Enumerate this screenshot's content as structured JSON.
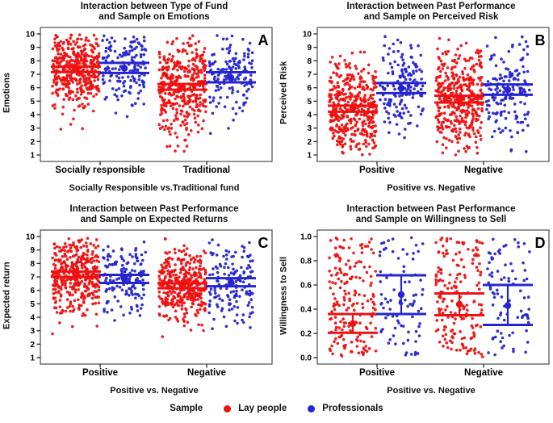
{
  "figure": {
    "background": "#ffffff",
    "colors": {
      "lay": "#EE1111",
      "prof": "#2525D0",
      "axis": "#4d4d4d",
      "text": "#000000"
    }
  },
  "legend": {
    "title": "Sample",
    "entries": [
      {
        "sample": "lay",
        "label": "Lay people"
      },
      {
        "sample": "prof",
        "label": "Professionals"
      }
    ]
  },
  "chart_data": [
    {
      "panel_label": "A",
      "type": "scatter",
      "title_lines": [
        "Interaction between Type of Fund",
        "and Sample on Emotions"
      ],
      "ylabel": "Emotions",
      "xlabel": "Socially Responsible vs.Traditional fund",
      "ylim": [
        1,
        10
      ],
      "yticks": {
        "values": [
          1,
          2,
          3,
          4,
          5,
          6,
          7,
          8,
          9,
          10
        ],
        "labels": [
          "1",
          "2",
          "3",
          "4",
          "5",
          "6",
          "7",
          "8",
          "9",
          "10"
        ]
      },
      "categories": [
        "Socially responsible",
        "Traditional"
      ],
      "series": [
        {
          "sample": "lay",
          "name": "Lay people",
          "category": "Socially responsible",
          "dist": "normal",
          "mean": 7.37,
          "ci_low": 7.16,
          "ci_high": 7.57,
          "sd": 1.45,
          "clip": [
            1.9,
            9.95
          ],
          "n": 380
        },
        {
          "sample": "prof",
          "name": "Professionals",
          "category": "Socially responsible",
          "dist": "normal",
          "mean": 7.45,
          "ci_low": 7.1,
          "ci_high": 7.85,
          "sd": 1.5,
          "clip": [
            2.0,
            9.95
          ],
          "n": 150
        },
        {
          "sample": "lay",
          "name": "Lay people",
          "category": "Traditional",
          "dist": "normal",
          "mean": 6.05,
          "ci_low": 5.85,
          "ci_high": 6.28,
          "sd": 1.75,
          "clip": [
            1.0,
            9.9
          ],
          "n": 380
        },
        {
          "sample": "prof",
          "name": "Professionals",
          "category": "Traditional",
          "dist": "normal",
          "mean": 6.75,
          "ci_low": 6.4,
          "ci_high": 7.15,
          "sd": 1.65,
          "clip": [
            1.3,
            9.9
          ],
          "n": 150
        }
      ]
    },
    {
      "panel_label": "B",
      "type": "scatter",
      "title_lines": [
        "Interaction between Past Performance",
        "and Sample on Perceived Risk"
      ],
      "ylabel": "Perceived Risk",
      "xlabel": "Positive vs. Negative",
      "ylim": [
        1,
        10
      ],
      "yticks": {
        "values": [
          1,
          2,
          3,
          4,
          5,
          6,
          7,
          8,
          9,
          10
        ],
        "labels": [
          "1",
          "2",
          "3",
          "4",
          "5",
          "6",
          "7",
          "8",
          "9",
          "10"
        ]
      },
      "categories": [
        "Positive",
        "Negative"
      ],
      "series": [
        {
          "sample": "lay",
          "name": "Lay people",
          "category": "Positive",
          "dist": "normal",
          "mean": 4.45,
          "ci_low": 4.22,
          "ci_high": 4.67,
          "sd": 1.8,
          "clip": [
            1.0,
            9.9
          ],
          "n": 400
        },
        {
          "sample": "prof",
          "name": "Professionals",
          "category": "Positive",
          "dist": "normal",
          "mean": 5.95,
          "ci_low": 5.6,
          "ci_high": 6.35,
          "sd": 1.65,
          "clip": [
            1.2,
            10.0
          ],
          "n": 160
        },
        {
          "sample": "lay",
          "name": "Lay people",
          "category": "Negative",
          "dist": "normal",
          "mean": 5.15,
          "ci_low": 4.9,
          "ci_high": 5.4,
          "sd": 1.85,
          "clip": [
            1.0,
            9.9
          ],
          "n": 400
        },
        {
          "sample": "prof",
          "name": "Professionals",
          "category": "Negative",
          "dist": "normal",
          "mean": 5.85,
          "ci_low": 5.48,
          "ci_high": 6.24,
          "sd": 1.8,
          "clip": [
            1.1,
            10.0
          ],
          "n": 160
        }
      ]
    },
    {
      "panel_label": "C",
      "type": "scatter",
      "title_lines": [
        "Interaction between Past Performance",
        "and Sample on Expected Returns"
      ],
      "ylabel": "Expected return",
      "xlabel": "Positive vs. Negative",
      "ylim": [
        1,
        10
      ],
      "yticks": {
        "values": [
          1,
          2,
          3,
          4,
          5,
          6,
          7,
          8,
          9,
          10
        ],
        "labels": [
          "1",
          "2",
          "3",
          "4",
          "5",
          "6",
          "7",
          "8",
          "9",
          "10"
        ]
      },
      "categories": [
        "Positive",
        "Negative"
      ],
      "series": [
        {
          "sample": "lay",
          "name": "Lay people",
          "category": "Positive",
          "dist": "normal",
          "mean": 7.2,
          "ci_low": 7.0,
          "ci_high": 7.4,
          "sd": 1.4,
          "clip": [
            1.8,
            10.0
          ],
          "n": 380
        },
        {
          "sample": "prof",
          "name": "Professionals",
          "category": "Positive",
          "dist": "normal",
          "mean": 6.85,
          "ci_low": 6.55,
          "ci_high": 7.15,
          "sd": 1.35,
          "clip": [
            2.2,
            10.0
          ],
          "n": 150
        },
        {
          "sample": "lay",
          "name": "Lay people",
          "category": "Negative",
          "dist": "normal",
          "mean": 6.35,
          "ci_low": 6.15,
          "ci_high": 6.52,
          "sd": 1.6,
          "clip": [
            1.5,
            9.9
          ],
          "n": 380
        },
        {
          "sample": "prof",
          "name": "Professionals",
          "category": "Negative",
          "dist": "normal",
          "mean": 6.6,
          "ci_low": 6.3,
          "ci_high": 6.9,
          "sd": 1.6,
          "clip": [
            1.1,
            10.0
          ],
          "n": 150
        }
      ]
    },
    {
      "panel_label": "D",
      "type": "scatter",
      "title_lines": [
        "Interaction between Past Performance",
        "and Sample on Willingness to Sell"
      ],
      "ylabel": "Willingness to Sell",
      "xlabel": "Positive vs. Negative",
      "ylim": [
        0,
        1
      ],
      "yticks": {
        "values": [
          0,
          0.2,
          0.4,
          0.6,
          0.8,
          1
        ],
        "labels": [
          "0.0",
          "0.2",
          "0.4",
          "0.6",
          "0.8",
          "1.0"
        ]
      },
      "categories": [
        "Positive",
        "Negative"
      ],
      "series": [
        {
          "sample": "lay",
          "name": "Lay people",
          "category": "Positive",
          "dist": "uniform",
          "mean": 0.28,
          "ci_low": 0.205,
          "ci_high": 0.36,
          "clip": [
            0.005,
            0.995
          ],
          "n": 180
        },
        {
          "sample": "prof",
          "name": "Professionals",
          "category": "Positive",
          "dist": "uniform",
          "mean": 0.52,
          "ci_low": 0.36,
          "ci_high": 0.68,
          "clip": [
            0.005,
            0.995
          ],
          "n": 85
        },
        {
          "sample": "lay",
          "name": "Lay people",
          "category": "Negative",
          "dist": "uniform",
          "mean": 0.44,
          "ci_low": 0.35,
          "ci_high": 0.53,
          "clip": [
            0.005,
            0.995
          ],
          "n": 175
        },
        {
          "sample": "prof",
          "name": "Professionals",
          "category": "Negative",
          "dist": "uniform",
          "mean": 0.43,
          "ci_low": 0.27,
          "ci_high": 0.6,
          "clip": [
            0.005,
            0.995
          ],
          "n": 85
        }
      ]
    }
  ]
}
